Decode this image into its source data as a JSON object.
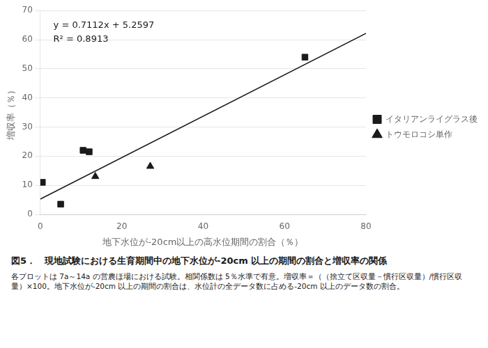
{
  "chart_data": {
    "type": "scatter",
    "x_label": "地下水位が-20cm以上の高水位期間の割合（％）",
    "y_label": "増収率（％）",
    "series": [
      {
        "type": "line",
        "color": "#1a1a1a",
        "x": [
          0,
          80
        ],
        "values": [
          5.2597,
          62.1557
        ]
      },
      {
        "name": "イタリアンライグラス後",
        "marker": "square",
        "color": "#1a1a1a",
        "x": [
          0.5,
          5.0,
          10.5,
          12.0,
          65.0
        ],
        "values": [
          11.0,
          3.5,
          22.0,
          21.5,
          54.0
        ]
      },
      {
        "name": "トウモロコシ単作",
        "marker": "triangle",
        "color": "#1a1a1a",
        "x": [
          13.5,
          27.0
        ],
        "values": [
          13.0,
          16.5
        ]
      }
    ],
    "annotations": [
      "y = 0.7112x + 5.2597",
      "R² = 0.8913"
    ],
    "caption": [
      "図5．　現地試験における生育期間中の地下水位が-20cm 以上の期間の割合と増収率の関係",
      "各プロットは 7a～14a の営農ほ場における試験。相関係数は 5％水準で有意。増収率＝（（捨立て区収量－慣行区収量）/慣行区収量）×100。地下水位が-20cm 以上の期間の割合は、水位計の全データ数に占める-20cm 以上のデータ数の割合。"
    ],
    "xlim": [
      0,
      80
    ],
    "ylim": [
      0,
      70
    ],
    "xticks": [
      0,
      20,
      40,
      60,
      80
    ],
    "yticks": [
      0,
      10,
      20,
      30,
      40,
      50,
      60,
      70
    ],
    "grid": "y",
    "legend": "right"
  }
}
